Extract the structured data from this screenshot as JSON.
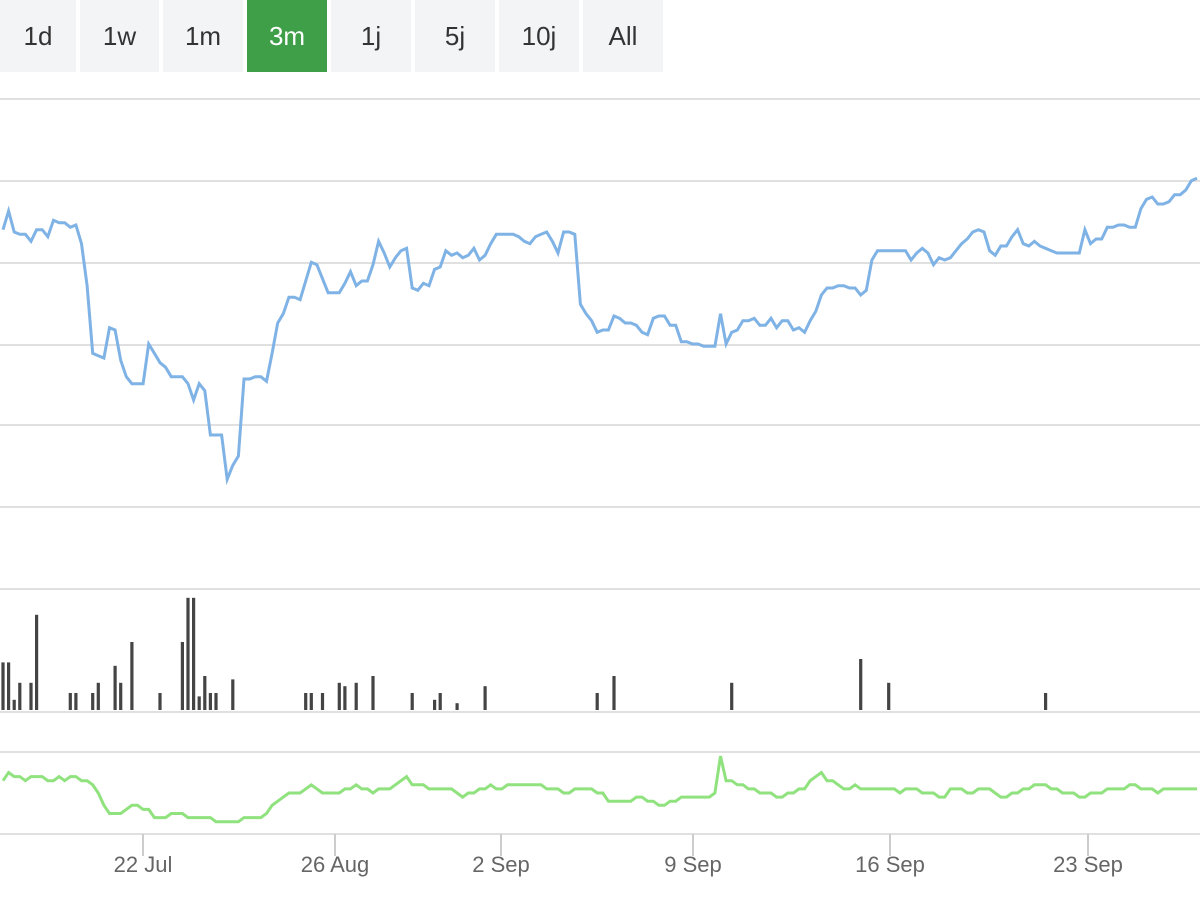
{
  "range_selector": {
    "buttons": [
      "1d",
      "1w",
      "1m",
      "3m",
      "1j",
      "5j",
      "10j",
      "All"
    ],
    "active": "3m"
  },
  "colors": {
    "price_line": "#7fb2e5",
    "volume_bars": "#444444",
    "indicator_line": "#90e27e",
    "active_button": "#3f9f49",
    "gridline": "#e0e0e0"
  },
  "chart_data": {
    "type": "line",
    "x_tick_labels": [
      "22 Jul",
      "26 Aug",
      "2 Sep",
      "9 Sep",
      "16 Sep",
      "23 Sep"
    ],
    "y_tick_labels": [],
    "grid": true,
    "legend": "none",
    "series": [
      {
        "role": "price",
        "values": [
          121,
          129,
          120,
          119,
          119,
          116,
          121,
          121,
          118,
          125,
          124,
          124,
          122,
          123,
          115,
          97,
          68,
          67,
          66,
          79,
          78,
          65,
          58,
          55,
          55,
          55,
          72,
          68,
          64,
          62,
          58,
          58,
          58,
          55,
          48,
          55,
          52,
          33,
          33,
          33,
          14,
          20,
          24,
          57,
          57,
          58,
          58,
          56,
          68,
          81,
          85,
          92,
          92,
          91,
          99,
          107,
          106,
          100,
          94,
          94,
          94,
          98,
          103,
          97,
          99,
          99,
          106,
          116,
          111,
          105,
          109,
          112,
          113,
          96,
          95,
          98,
          97,
          104,
          105,
          112,
          110,
          111,
          109,
          110,
          113,
          108,
          110,
          115,
          119,
          119,
          119,
          119,
          118,
          116,
          115,
          118,
          119,
          120,
          116,
          111,
          120,
          120,
          119,
          89,
          85,
          82,
          77,
          78,
          78,
          84,
          83,
          81,
          81,
          80,
          77,
          76,
          83,
          84,
          84,
          80,
          80,
          73,
          73,
          72,
          72,
          71,
          71,
          71,
          85,
          72,
          77,
          78,
          82,
          82,
          83,
          80,
          80,
          83,
          79,
          82,
          82,
          78,
          79,
          77,
          82,
          86,
          93,
          96,
          96,
          97,
          97,
          96,
          96,
          93,
          95,
          108,
          112,
          112,
          112,
          112,
          112,
          112,
          108,
          111,
          113,
          111,
          106,
          109,
          108,
          109,
          112,
          115,
          117,
          120,
          121,
          120,
          112,
          110,
          114,
          114,
          118,
          121,
          115,
          114,
          116,
          114,
          113,
          112,
          111,
          111,
          111,
          111,
          111,
          121,
          115,
          117,
          117,
          122,
          122,
          123,
          123,
          122,
          122,
          130,
          134,
          135,
          132,
          132,
          133,
          136,
          136,
          138,
          142,
          143
        ]
      },
      {
        "role": "volume",
        "values": [
          14,
          14,
          3,
          8,
          0,
          8,
          28,
          0,
          0,
          0,
          0,
          0,
          5,
          5,
          0,
          0,
          5,
          8,
          0,
          0,
          13,
          8,
          0,
          20,
          0,
          0,
          0,
          0,
          5,
          0,
          0,
          0,
          20,
          33,
          33,
          4,
          10,
          5,
          5,
          0,
          0,
          9,
          0,
          0,
          0,
          0,
          0,
          0,
          0,
          0,
          0,
          0,
          0,
          0,
          5,
          5,
          0,
          5,
          0,
          0,
          8,
          7,
          0,
          8,
          0,
          0,
          10,
          0,
          0,
          0,
          0,
          0,
          0,
          5,
          0,
          0,
          0,
          3,
          5,
          0,
          0,
          2,
          0,
          0,
          0,
          0,
          7,
          0,
          0,
          0,
          0,
          0,
          0,
          0,
          0,
          0,
          0,
          0,
          0,
          0,
          0,
          0,
          0,
          0,
          0,
          0,
          5,
          0,
          0,
          10,
          0,
          0,
          0,
          0,
          0,
          0,
          0,
          0,
          0,
          0,
          0,
          0,
          0,
          0,
          0,
          0,
          0,
          0,
          0,
          0,
          8,
          0,
          0,
          0,
          0,
          0,
          0,
          0,
          0,
          0,
          0,
          0,
          0,
          0,
          0,
          0,
          0,
          0,
          0,
          0,
          0,
          0,
          0,
          15,
          0,
          0,
          0,
          0,
          8,
          0,
          0,
          0,
          0,
          0,
          0,
          0,
          0,
          0,
          0,
          0,
          0,
          0,
          0,
          0,
          0,
          0,
          0,
          0,
          0,
          0,
          0,
          0,
          0,
          0,
          0,
          0,
          5,
          0,
          0,
          0,
          0,
          0,
          0,
          0,
          0,
          0,
          0,
          0,
          0,
          0,
          0,
          0,
          0,
          0,
          0,
          0,
          0,
          0,
          0,
          0,
          0,
          0,
          0,
          0,
          0,
          0,
          0,
          0,
          0,
          0,
          0,
          0
        ]
      },
      {
        "role": "indicator",
        "values": [
          53,
          55,
          54,
          54,
          53,
          54,
          54,
          54,
          53,
          53,
          54,
          53,
          54,
          54,
          53,
          53,
          52,
          50,
          47,
          45,
          45,
          45,
          46,
          47,
          47,
          46,
          46,
          44,
          44,
          44,
          45,
          45,
          45,
          44,
          44,
          44,
          44,
          44,
          43,
          43,
          43,
          43,
          43,
          44,
          44,
          44,
          44,
          45,
          47,
          48,
          49,
          50,
          50,
          50,
          51,
          52,
          51,
          50,
          50,
          50,
          50,
          51,
          51,
          52,
          51,
          51,
          50,
          51,
          51,
          51,
          52,
          53,
          54,
          52,
          52,
          52,
          51,
          51,
          51,
          51,
          51,
          50,
          49,
          50,
          50,
          51,
          51,
          52,
          51,
          51,
          52,
          52,
          52,
          52,
          52,
          52,
          52,
          51,
          51,
          51,
          50,
          50,
          51,
          51,
          51,
          51,
          50,
          50,
          48,
          48,
          48,
          48,
          48,
          49,
          49,
          48,
          48,
          47,
          47,
          48,
          48,
          49,
          49,
          49,
          49,
          49,
          49,
          50,
          59,
          53,
          53,
          52,
          52,
          51,
          51,
          50,
          50,
          50,
          49,
          49,
          50,
          50,
          51,
          51,
          53,
          54,
          55,
          53,
          53,
          52,
          51,
          51,
          52,
          51,
          51,
          51,
          51,
          51,
          51,
          51,
          50,
          51,
          51,
          51,
          50,
          50,
          50,
          49,
          49,
          51,
          51,
          51,
          50,
          50,
          51,
          51,
          51,
          50,
          49,
          49,
          50,
          50,
          51,
          51,
          52,
          52,
          52,
          51,
          51,
          50,
          50,
          50,
          49,
          49,
          50,
          50,
          50,
          51,
          51,
          51,
          51,
          52,
          52,
          51,
          51,
          51,
          50,
          51,
          51,
          51,
          51,
          51,
          51,
          51
        ]
      }
    ]
  }
}
